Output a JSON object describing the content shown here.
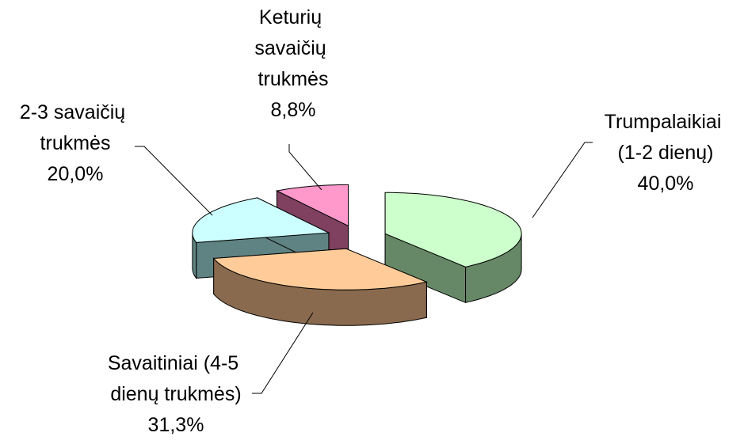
{
  "chart_data": {
    "type": "pie3d",
    "categories": [
      "Trumpalaikiai (1-2 dienų)",
      "Savaitiniai (4-5 dienų trukmės)",
      "2-3 savaičių trukmės",
      "Keturių savaičių trukmės"
    ],
    "values": [
      40.0,
      31.3,
      20.0,
      8.8
    ],
    "value_labels": [
      "40,0%",
      "31,3%",
      "20,0%",
      "8,8%"
    ],
    "colors": [
      "#ccffcc",
      "#ffcc99",
      "#ccffff",
      "#ff99cc"
    ],
    "side_colors": [
      "#668866",
      "#8a6a4e",
      "#5f8282",
      "#804060"
    ]
  }
}
